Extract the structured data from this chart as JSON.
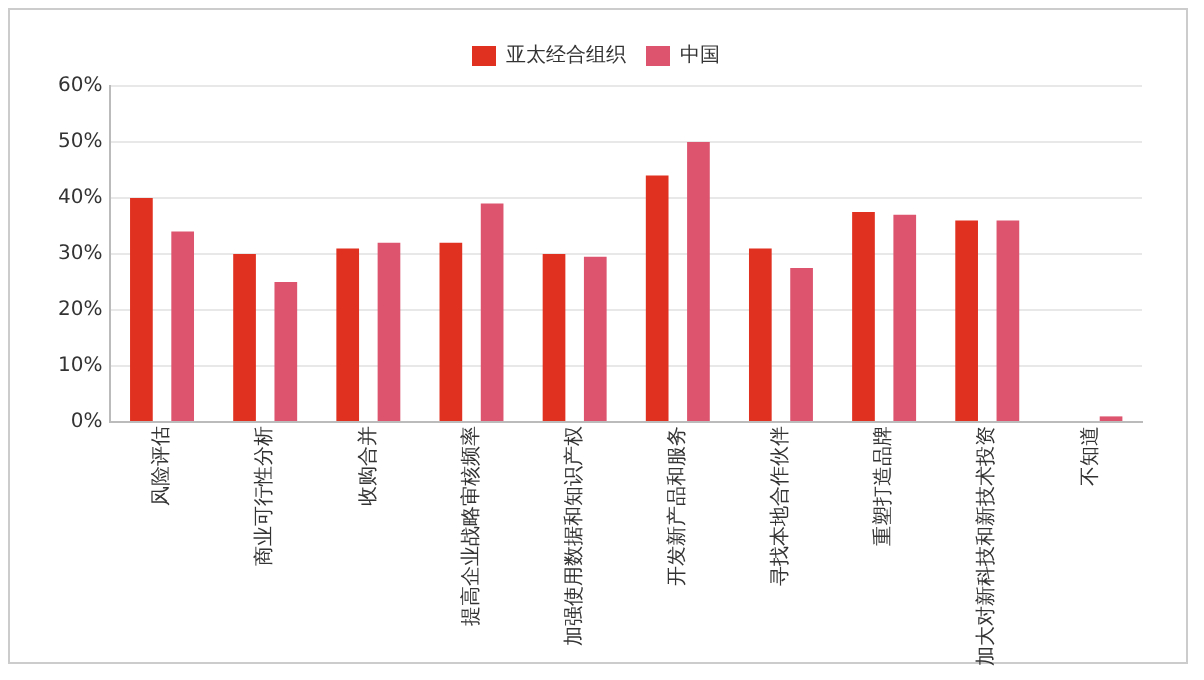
{
  "chart_data": {
    "type": "bar",
    "categories": [
      "风险评估",
      "商业可行性分析",
      "收购合并",
      "提高企业战略审核频率",
      "加强使用数据和知识产权",
      "开发新产品和服务",
      "寻找本地合作伙伴",
      "重塑打造品牌",
      "加大对新科技和新技术投资",
      "不知道"
    ],
    "series": [
      {
        "name": "亚太经合组织",
        "color": "#e03020",
        "values": [
          40,
          30,
          31,
          32,
          30,
          44,
          31,
          37.5,
          36,
          0
        ]
      },
      {
        "name": "中国",
        "color": "#dc546e",
        "values": [
          34,
          25,
          32,
          39,
          29.5,
          50,
          27.5,
          37,
          36,
          1
        ]
      }
    ],
    "ylim": [
      0,
      60
    ],
    "yticks": [
      {
        "value": 0,
        "label": "0%"
      },
      {
        "value": 10,
        "label": "10%"
      },
      {
        "value": 20,
        "label": "20%"
      },
      {
        "value": 30,
        "label": "30%"
      },
      {
        "value": 40,
        "label": "40%"
      },
      {
        "value": 50,
        "label": "50%"
      },
      {
        "value": 60,
        "label": "60%"
      }
    ],
    "grid": "y",
    "legend": "top"
  }
}
